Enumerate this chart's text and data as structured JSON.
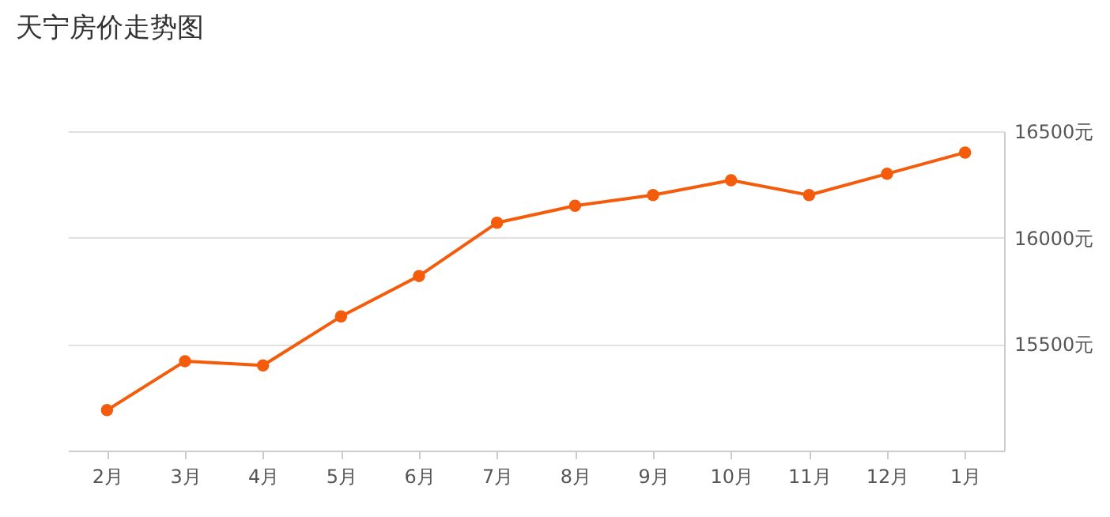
{
  "chart_data": {
    "type": "line",
    "title": "天宁房价走势图",
    "categories": [
      "2月",
      "3月",
      "4月",
      "5月",
      "6月",
      "7月",
      "8月",
      "9月",
      "10月",
      "11月",
      "12月",
      "1月"
    ],
    "series": [
      {
        "color": "#f45b0b",
        "values": [
          15190,
          15420,
          15400,
          15630,
          15820,
          16070,
          16150,
          16200,
          16270,
          16200,
          16300,
          16400
        ]
      }
    ],
    "ylim": [
      15000,
      16500
    ],
    "yticks": [
      {
        "value": 15500,
        "label": "15500元"
      },
      {
        "value": 16000,
        "label": "16000元"
      },
      {
        "value": 16500,
        "label": "16500元"
      }
    ],
    "grid": "y",
    "marker": "circle",
    "line_style": "solid"
  }
}
